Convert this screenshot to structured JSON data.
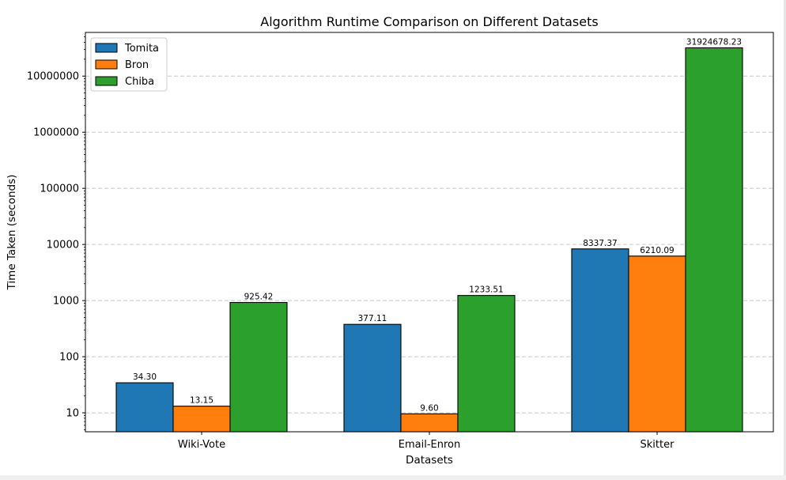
{
  "chart_data": {
    "type": "bar",
    "title": "Algorithm Runtime Comparison on Different Datasets",
    "xlabel": "Datasets",
    "ylabel": "Time Taken (seconds)",
    "yscale": "log",
    "ylim": [
      4.6,
      60000000
    ],
    "yticks": [
      10,
      100,
      1000,
      10000,
      100000,
      1000000,
      10000000
    ],
    "ytick_labels": [
      "10",
      "100",
      "1000",
      "10000",
      "100000",
      "1000000",
      "10000000"
    ],
    "categories": [
      "Wiki-Vote",
      "Email-Enron",
      "Skitter"
    ],
    "series": [
      {
        "name": "Tomita",
        "color": "#1f77b4",
        "values": [
          34.3,
          377.11,
          8337.37
        ],
        "labels": [
          "34.30",
          "377.11",
          "8337.37"
        ]
      },
      {
        "name": "Bron",
        "color": "#ff7f0e",
        "values": [
          13.15,
          9.6,
          6210.09
        ],
        "labels": [
          "13.15",
          "9.60",
          "6210.09"
        ]
      },
      {
        "name": "Chiba",
        "color": "#2ca02c",
        "values": [
          925.42,
          1233.51,
          31924678.23
        ],
        "labels": [
          "925.42",
          "1233.51",
          "31924678.23"
        ]
      }
    ],
    "grid": "y-dashed",
    "legend_position": "top-left"
  }
}
